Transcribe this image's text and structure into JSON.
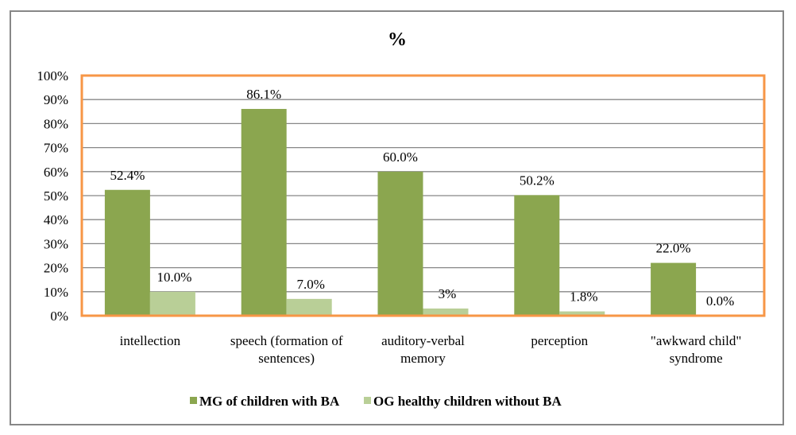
{
  "chart_data": {
    "type": "bar",
    "title": "%",
    "xlabel": "",
    "ylabel": "",
    "ylim": [
      0,
      100
    ],
    "yticks": [
      "0%",
      "10%",
      "20%",
      "30%",
      "40%",
      "50%",
      "60%",
      "70%",
      "80%",
      "90%",
      "100%"
    ],
    "grid": true,
    "legend_position": "bottom",
    "categories": [
      [
        "intellection"
      ],
      [
        "speech (formation of",
        "sentences)"
      ],
      [
        "auditory-verbal",
        "memory"
      ],
      [
        "perception"
      ],
      [
        "\"awkward child\"",
        "syndrome"
      ]
    ],
    "series": [
      {
        "name": "MG of children with BA",
        "color": "#8ba64f",
        "values": [
          52.4,
          86.1,
          60.0,
          50.2,
          22.0
        ],
        "labels": [
          "52.4%",
          "86.1%",
          "60.0%",
          "50.2%",
          "22.0%"
        ]
      },
      {
        "name": "OG healthy children without BA",
        "color": "#b9cf97",
        "values": [
          10.0,
          7.0,
          3.0,
          1.8,
          0.0
        ],
        "labels": [
          "10.0%",
          "7.0%",
          "3%",
          "1.8%",
          "0.0%"
        ]
      }
    ],
    "plot_border_color": "#f79646",
    "gridline_color": "#878787"
  }
}
